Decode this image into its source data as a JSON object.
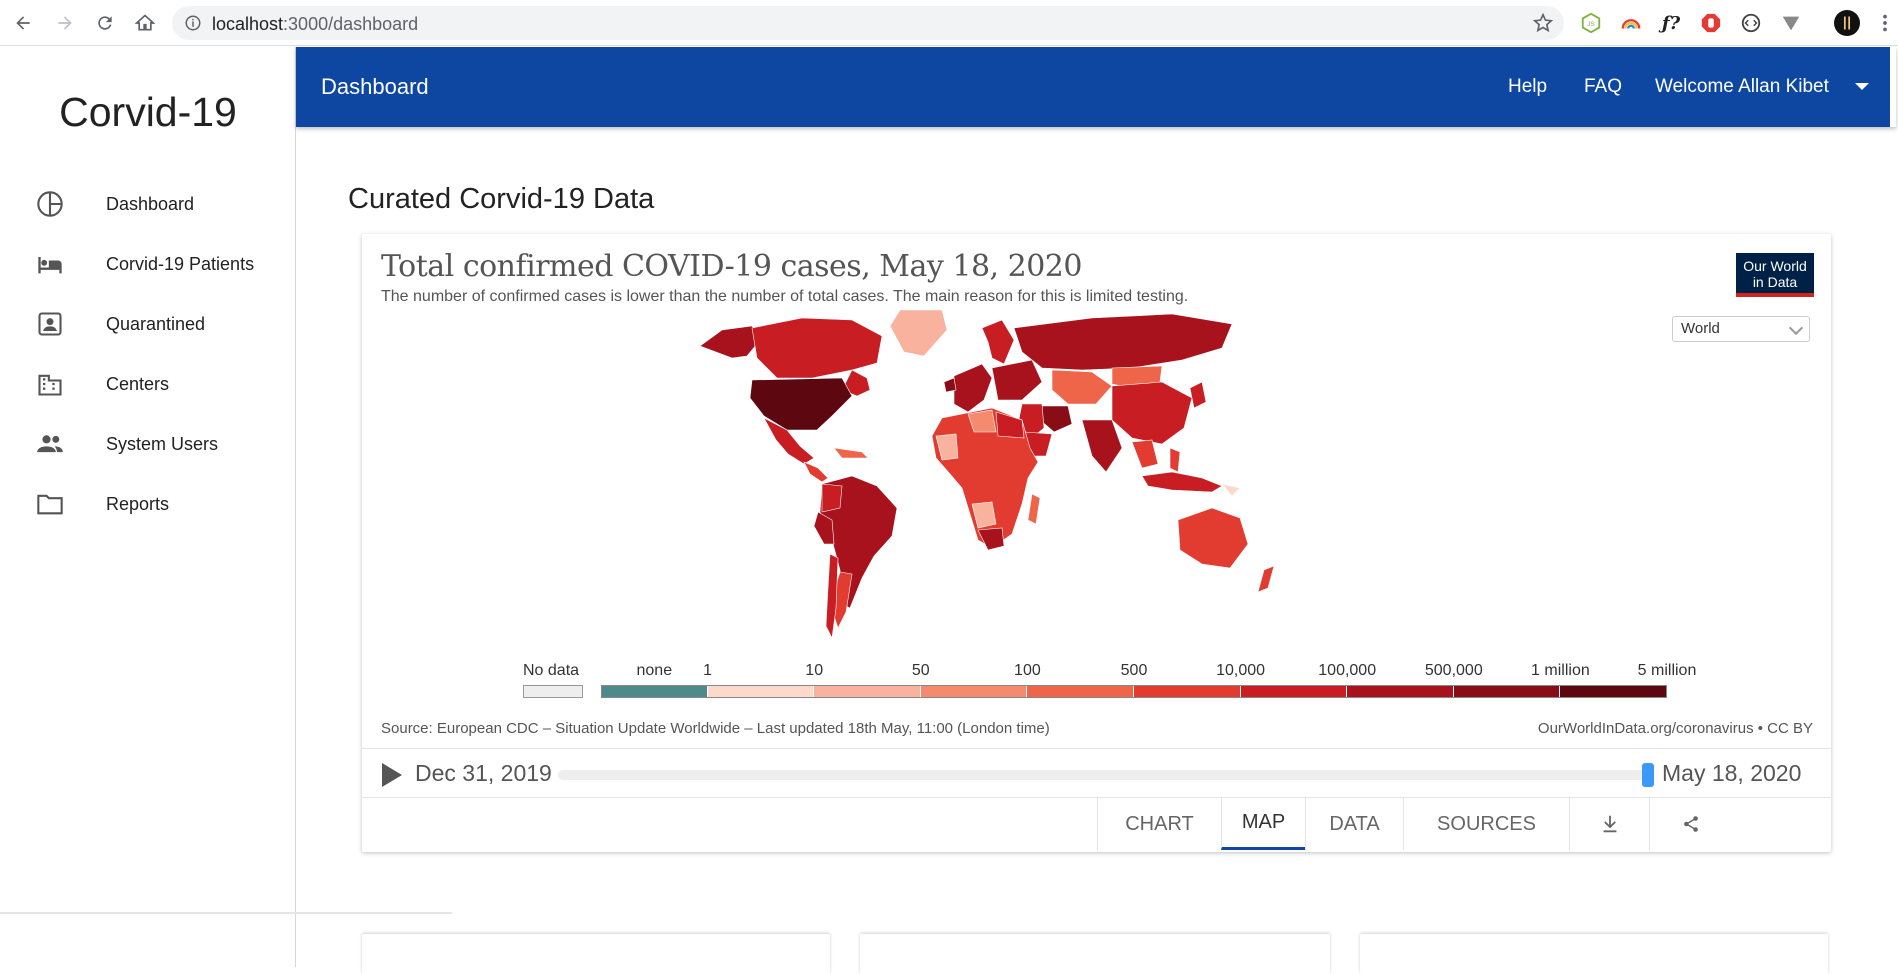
{
  "browser": {
    "url_host": "localhost",
    "url_path": ":3000/dashboard"
  },
  "sidebar": {
    "brand": "Corvid-19",
    "items": [
      {
        "label": "Dashboard",
        "icon": "pie-chart-icon"
      },
      {
        "label": "Corvid-19 Patients",
        "icon": "bed-icon"
      },
      {
        "label": "Quarantined",
        "icon": "contact-icon"
      },
      {
        "label": "Centers",
        "icon": "building-icon"
      },
      {
        "label": "System Users",
        "icon": "people-icon"
      },
      {
        "label": "Reports",
        "icon": "folder-icon"
      }
    ]
  },
  "appbar": {
    "title": "Dashboard",
    "help": "Help",
    "faq": "FAQ",
    "welcome": "Welcome Allan Kibet"
  },
  "main": {
    "section_title": "Curated Corvid-19 Data"
  },
  "owid": {
    "title": "Total confirmed COVID-19 cases, May 18, 2020",
    "subtitle": "The number of confirmed cases is lower than the number of total cases. The main reason for this is limited testing.",
    "logo_line1": "Our World",
    "logo_line2": "in Data",
    "region_select": "World",
    "legend": {
      "no_data": "No data",
      "labels": [
        "none",
        "1",
        "10",
        "50",
        "100",
        "500",
        "10,000",
        "100,000",
        "500,000",
        "1 million",
        "5 million"
      ],
      "colors": [
        "#4f8a8b",
        "#fcd9cb",
        "#f9b29d",
        "#f48b6f",
        "#ee6549",
        "#e23b30",
        "#c81d22",
        "#a8121c",
        "#880d16",
        "#5d0811"
      ]
    },
    "source": "Source: European CDC – Situation Update Worldwide – Last updated 18th May, 11:00 (London time)",
    "credit": "OurWorldInData.org/coronavirus • CC BY",
    "timeline": {
      "start": "Dec 31, 2019",
      "end": "May 18, 2020",
      "position": 1.0
    },
    "tabs": {
      "chart": "CHART",
      "map": "MAP",
      "data": "DATA",
      "sources": "SOURCES",
      "active": "MAP"
    }
  }
}
